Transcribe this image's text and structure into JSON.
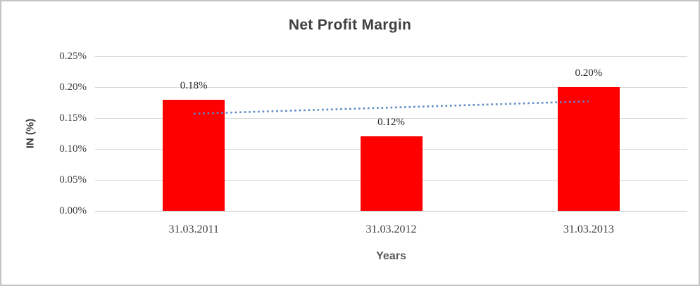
{
  "chart_data": {
    "type": "bar",
    "title": "Net Profit Margin",
    "xlabel": "Years",
    "ylabel": "IN (%)",
    "categories": [
      "31.03.2011",
      "31.03.2012",
      "31.03.2013"
    ],
    "series": [
      {
        "name": "Net Profit Margin",
        "values": [
          0.18,
          0.12,
          0.2
        ]
      }
    ],
    "data_labels": [
      "0.18%",
      "0.12%",
      "0.20%"
    ],
    "ylim": [
      0,
      0.25
    ],
    "ytick_step": 0.05,
    "ytick_labels": [
      "0.00%",
      "0.05%",
      "0.10%",
      "0.15%",
      "0.20%",
      "0.25%"
    ],
    "grid": true,
    "legend": "none",
    "bar_color": "#ff0000",
    "gridline_color": "#d9d9d9",
    "trendline": {
      "style": "dotted",
      "color": "#5a8ac6",
      "start_value": 0.157,
      "end_value": 0.177
    }
  }
}
